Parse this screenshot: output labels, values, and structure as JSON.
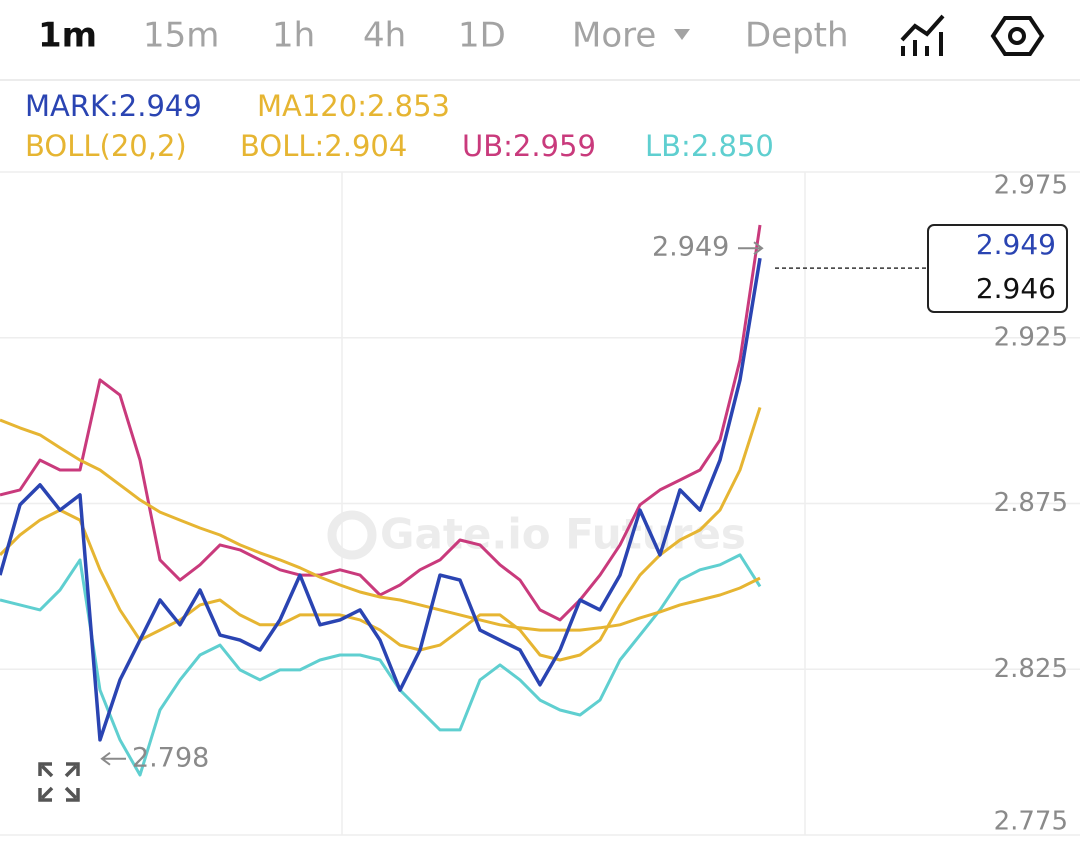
{
  "toolbar": {
    "tabs": [
      "1m",
      "15m",
      "1h",
      "4h",
      "1D"
    ],
    "more": "More",
    "depth": "Depth"
  },
  "watermark": "Gate.io Futures",
  "chart_data": {
    "type": "line",
    "boll_params": "BOLL(20,2)",
    "x": [
      0,
      1,
      2,
      3,
      4,
      5,
      6,
      7,
      8,
      9,
      10,
      11,
      12,
      13,
      14,
      15,
      16,
      17,
      18,
      19,
      20,
      21,
      22,
      23,
      24,
      25,
      26,
      27,
      28,
      29,
      30,
      31,
      32,
      33,
      34,
      35,
      36,
      37,
      38
    ],
    "xlim": [
      0,
      54
    ],
    "ylim": [
      2.775,
      2.975
    ],
    "yticks": [
      2.975,
      2.925,
      2.875,
      2.825,
      2.775
    ],
    "grid": true,
    "series": [
      {
        "name": "MARK:2.949",
        "color": "#2a44b2",
        "values": [
          2.8534,
          2.8746,
          2.8806,
          2.873,
          2.8776,
          2.8037,
          2.8218,
          2.8338,
          2.8459,
          2.8384,
          2.8489,
          2.8353,
          2.8338,
          2.8308,
          2.8399,
          2.8534,
          2.8384,
          2.8399,
          2.8429,
          2.8338,
          2.8187,
          2.8308,
          2.8534,
          2.8519,
          2.8368,
          2.8338,
          2.8308,
          2.8203,
          2.8308,
          2.8459,
          2.8429,
          2.8534,
          2.873,
          2.8595,
          2.8791,
          2.873,
          2.8881,
          2.9123,
          2.949
        ]
      },
      {
        "name": "MA120:2.853",
        "color": "#e6b532",
        "values": [
          2.9002,
          2.8978,
          2.8957,
          2.8918,
          2.8881,
          2.8851,
          2.8806,
          2.8761,
          2.8724,
          2.87,
          2.8676,
          2.8655,
          2.8625,
          2.8601,
          2.858,
          2.8556,
          2.8528,
          2.8504,
          2.8483,
          2.8468,
          2.8459,
          2.8444,
          2.8429,
          2.8414,
          2.8399,
          2.8384,
          2.8375,
          2.8368,
          2.8368,
          2.8368,
          2.8375,
          2.8384,
          2.8405,
          2.8423,
          2.8444,
          2.8459,
          2.8474,
          2.8495,
          2.8525
        ]
      },
      {
        "name": "BOLL:2.904",
        "color": "#e6b532",
        "values": [
          2.8595,
          2.8655,
          2.87,
          2.873,
          2.87,
          2.855,
          2.8429,
          2.8338,
          2.8368,
          2.8399,
          2.8444,
          2.8459,
          2.8414,
          2.8384,
          2.8384,
          2.8414,
          2.8414,
          2.8414,
          2.8399,
          2.8368,
          2.8323,
          2.8308,
          2.8323,
          2.8368,
          2.8414,
          2.8414,
          2.8368,
          2.8293,
          2.8278,
          2.8293,
          2.8338,
          2.8444,
          2.8534,
          2.8595,
          2.864,
          2.867,
          2.873,
          2.8851,
          2.904
        ]
      },
      {
        "name": "UB:2.959",
        "color": "#c93a7c",
        "values": [
          2.8776,
          2.8791,
          2.8881,
          2.8851,
          2.8851,
          2.9123,
          2.9077,
          2.8881,
          2.858,
          2.8519,
          2.8565,
          2.8625,
          2.861,
          2.858,
          2.855,
          2.8534,
          2.8534,
          2.855,
          2.8534,
          2.8474,
          2.8504,
          2.855,
          2.858,
          2.864,
          2.8625,
          2.8565,
          2.8519,
          2.8429,
          2.8399,
          2.8459,
          2.8534,
          2.8625,
          2.8746,
          2.8791,
          2.8821,
          2.8851,
          2.8942,
          2.9183,
          2.959
        ]
      },
      {
        "name": "LB:2.850",
        "color": "#5fcfd0",
        "values": [
          2.8459,
          2.8444,
          2.8429,
          2.8489,
          2.858,
          2.8187,
          2.8037,
          2.7931,
          2.8127,
          2.8218,
          2.8293,
          2.8323,
          2.8248,
          2.8218,
          2.8248,
          2.8248,
          2.8278,
          2.8293,
          2.8293,
          2.8278,
          2.8187,
          2.8127,
          2.8067,
          2.8067,
          2.8218,
          2.8263,
          2.8218,
          2.8157,
          2.8127,
          2.8112,
          2.8157,
          2.8278,
          2.8353,
          2.8429,
          2.8519,
          2.855,
          2.8565,
          2.8595,
          2.85
        ]
      }
    ],
    "high": 2.949,
    "low": 2.798,
    "mark_price": 2.949,
    "last_price": 2.946
  }
}
